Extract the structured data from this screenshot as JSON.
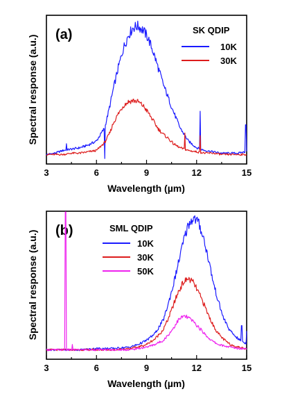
{
  "chart_data": [
    {
      "type": "line",
      "panel_label": "(a)",
      "legend_title": "SK QDIP",
      "xlabel": "Wavelength (µm)",
      "ylabel": "Spectral response (a.u.)",
      "xlim": [
        3,
        15
      ],
      "ylim": [
        -0.05,
        1.05
      ],
      "xticks": [
        3,
        6,
        9,
        12,
        15
      ],
      "xtick_labels": [
        "3",
        "6",
        "9",
        "12",
        "15"
      ],
      "grid": false,
      "legend_position": "top-right",
      "series": [
        {
          "name": "10K",
          "color": "#1a1aff",
          "x": [
            3.0,
            3.5,
            4.0,
            4.5,
            5.0,
            5.5,
            6.0,
            6.5,
            6.8,
            7.0,
            7.3,
            7.6,
            7.9,
            8.2,
            8.5,
            8.8,
            9.1,
            9.4,
            9.7,
            10.0,
            10.3,
            10.6,
            11.0,
            11.5,
            12.0,
            12.5,
            13.0,
            13.5,
            14.0,
            14.5,
            14.9
          ],
          "y": [
            0.02,
            0.03,
            0.05,
            0.06,
            0.07,
            0.09,
            0.12,
            0.22,
            0.38,
            0.5,
            0.66,
            0.8,
            0.9,
            0.96,
            0.97,
            0.94,
            0.88,
            0.78,
            0.66,
            0.54,
            0.44,
            0.34,
            0.22,
            0.12,
            0.07,
            0.05,
            0.04,
            0.03,
            0.03,
            0.03,
            0.04
          ],
          "spikes": [
            {
              "x": 4.2,
              "y": 0.1
            },
            {
              "x": 6.5,
              "y": -0.01
            },
            {
              "x": 12.2,
              "y": 0.34
            },
            {
              "x": 14.95,
              "y": 0.24
            }
          ]
        },
        {
          "name": "30K",
          "color": "#dd1c1c",
          "x": [
            3.0,
            3.5,
            4.0,
            4.5,
            5.0,
            5.5,
            6.0,
            6.5,
            6.8,
            7.0,
            7.3,
            7.6,
            7.9,
            8.2,
            8.5,
            8.8,
            9.1,
            9.4,
            9.7,
            10.0,
            10.3,
            10.6,
            11.0,
            11.5,
            12.0,
            12.5,
            13.0,
            13.5,
            14.0,
            14.5,
            14.9
          ],
          "y": [
            0.02,
            0.02,
            0.02,
            0.03,
            0.03,
            0.04,
            0.05,
            0.11,
            0.18,
            0.25,
            0.32,
            0.38,
            0.41,
            0.42,
            0.41,
            0.38,
            0.33,
            0.27,
            0.21,
            0.17,
            0.14,
            0.1,
            0.07,
            0.05,
            0.04,
            0.03,
            0.03,
            0.02,
            0.02,
            0.02,
            0.02
          ],
          "spikes": [
            {
              "x": 11.3,
              "y": 0.18
            },
            {
              "x": 12.2,
              "y": 0.16
            }
          ]
        }
      ]
    },
    {
      "type": "line",
      "panel_label": "(b)",
      "legend_title": "SML QDIP",
      "xlabel": "Wavelength (µm)",
      "ylabel": "Spectral response (a.u.)",
      "xlim": [
        3,
        15
      ],
      "ylim": [
        -0.05,
        1.05
      ],
      "xticks": [
        3,
        6,
        9,
        12,
        15
      ],
      "xtick_labels": [
        "3",
        "6",
        "9",
        "12",
        "15"
      ],
      "grid": false,
      "legend_position": "top-left",
      "series": [
        {
          "name": "10K",
          "color": "#1a1aff",
          "x": [
            3.0,
            4.0,
            5.0,
            6.0,
            7.0,
            8.0,
            8.5,
            9.0,
            9.5,
            10.0,
            10.3,
            10.6,
            10.9,
            11.2,
            11.5,
            11.8,
            12.1,
            12.4,
            12.7,
            13.0,
            13.3,
            13.6,
            14.0,
            14.5,
            14.9
          ],
          "y": [
            0.02,
            0.02,
            0.02,
            0.03,
            0.03,
            0.04,
            0.06,
            0.09,
            0.14,
            0.24,
            0.36,
            0.5,
            0.66,
            0.82,
            0.95,
            1.0,
            0.97,
            0.86,
            0.7,
            0.52,
            0.38,
            0.26,
            0.16,
            0.1,
            0.07
          ],
          "spikes": [
            {
              "x": 14.7,
              "y": 0.2
            },
            {
              "x": 15.0,
              "y": 0.16
            }
          ]
        },
        {
          "name": "30K",
          "color": "#dd1c1c",
          "x": [
            3.0,
            4.0,
            5.0,
            6.0,
            7.0,
            8.0,
            8.5,
            9.0,
            9.5,
            10.0,
            10.3,
            10.6,
            10.9,
            11.2,
            11.5,
            11.8,
            12.1,
            12.4,
            12.7,
            13.0,
            13.3,
            13.6,
            14.0,
            14.5,
            14.9
          ],
          "y": [
            0.02,
            0.02,
            0.02,
            0.02,
            0.02,
            0.03,
            0.04,
            0.06,
            0.1,
            0.17,
            0.25,
            0.35,
            0.45,
            0.52,
            0.55,
            0.52,
            0.45,
            0.37,
            0.28,
            0.2,
            0.14,
            0.1,
            0.06,
            0.04,
            0.03
          ],
          "spikes": []
        },
        {
          "name": "50K",
          "color": "#ee22ee",
          "x": [
            3.0,
            4.0,
            5.0,
            6.0,
            7.0,
            8.0,
            8.5,
            9.0,
            9.5,
            10.0,
            10.3,
            10.6,
            10.9,
            11.2,
            11.5,
            11.8,
            12.1,
            12.4,
            12.7,
            13.0,
            13.3,
            13.6,
            14.0,
            14.5,
            14.9
          ],
          "y": [
            0.02,
            0.02,
            0.02,
            0.02,
            0.02,
            0.02,
            0.03,
            0.04,
            0.06,
            0.09,
            0.13,
            0.18,
            0.24,
            0.27,
            0.26,
            0.23,
            0.19,
            0.15,
            0.11,
            0.08,
            0.06,
            0.05,
            0.04,
            0.03,
            0.03
          ],
          "spikes": [
            {
              "x": 4.15,
              "y": 1.05
            },
            {
              "x": 4.55,
              "y": 0.06
            }
          ]
        }
      ]
    }
  ]
}
